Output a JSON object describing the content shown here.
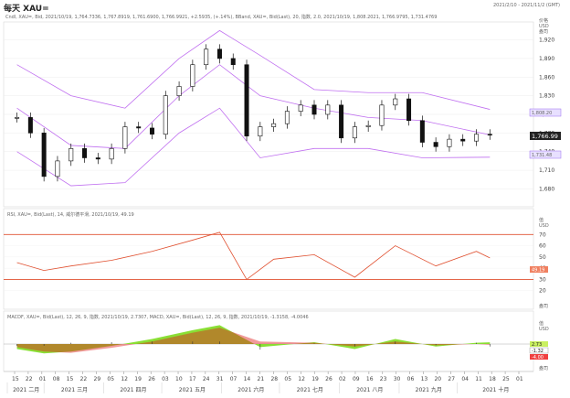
{
  "header": {
    "title": "每天 XAU=",
    "date_range": "2021/2/10 - 2021/11/2 (GMT)",
    "price_info": "Cndl, XAU=, Bid, 2021/10/19, 1,764.7336, 1,767.8919, 1,761.6900, 1,766.9921, +2.5935, (+.14%), BBand, XAU=, Bid(Last), 20, 指数, 2.0, 2021/10/19, 1,808.2021, 1,766.9795, 1,731.4769"
  },
  "price_panel": {
    "axis_title": "价格",
    "axis_unit": "USD",
    "axis_sub": "盎司",
    "last_price": "1,766.99",
    "upper_band_tag": "1,808.20",
    "lower_band_tag": "1,731.48",
    "ticks": [
      "1,920",
      "1,890",
      "1,860",
      "1,830",
      "1,800",
      "1,770",
      "1,740",
      "1,710",
      "1,680"
    ]
  },
  "rsi_panel": {
    "legend": "RSI, XAU=, Bid(Last), 14, 威尔德平滑, 2021/10/19, 49.19",
    "axis_title": "值",
    "axis_unit": "USD",
    "footer": "盎司",
    "ticks": [
      "70",
      "60",
      "50",
      "40",
      "30",
      "20"
    ],
    "last_tag": "49.19"
  },
  "macd_panel": {
    "legend": "MACDF, XAU=, Bid(Last), 12, 26, 9, 指数, 2021/10/19, 2.7307, MACD, XAU=, Bid(Last), 12, 26, 9, 指数, 2021/10/19, -1.3158, -4.0046",
    "axis_title": "值",
    "axis_unit": "USD",
    "footer": "盎司",
    "tags": [
      "2.73",
      "-1.32",
      "-4.00"
    ]
  },
  "time_axis": {
    "days": [
      "15",
      "22",
      "01",
      "08",
      "15",
      "22",
      "29",
      "05",
      "12",
      "19",
      "26",
      "03",
      "10",
      "17",
      "24",
      "31",
      "07",
      "14",
      "21",
      "28",
      "05",
      "12",
      "19",
      "26",
      "02",
      "09",
      "16",
      "23",
      "30",
      "06",
      "13",
      "20",
      "27",
      "04",
      "11",
      "18",
      "25",
      "01"
    ],
    "months": [
      "2021 二月",
      "2021 三月",
      "2021 四月",
      "2021 五月",
      "2021 六月",
      "2021 七月",
      "2021 八月",
      "2021 九月",
      "2021 十月"
    ]
  },
  "chart_data": [
    {
      "type": "candlestick",
      "series_name": "XAU= Bid",
      "x": [
        "2021-02-15",
        "2021-02-22",
        "2021-03-01",
        "2021-03-08",
        "2021-03-15",
        "2021-03-22",
        "2021-03-29",
        "2021-04-05",
        "2021-04-12",
        "2021-04-19",
        "2021-04-26",
        "2021-05-03",
        "2021-05-10",
        "2021-05-17",
        "2021-05-24",
        "2021-05-31",
        "2021-06-07",
        "2021-06-14",
        "2021-06-21",
        "2021-06-28",
        "2021-07-05",
        "2021-07-12",
        "2021-07-19",
        "2021-07-26",
        "2021-08-02",
        "2021-08-09",
        "2021-08-16",
        "2021-08-23",
        "2021-08-30",
        "2021-09-06",
        "2021-09-13",
        "2021-09-20",
        "2021-09-27",
        "2021-10-04",
        "2021-10-11",
        "2021-10-18"
      ],
      "close": [
        1795,
        1770,
        1700,
        1725,
        1745,
        1730,
        1728,
        1745,
        1780,
        1778,
        1768,
        1830,
        1845,
        1880,
        1905,
        1890,
        1880,
        1765,
        1780,
        1785,
        1805,
        1815,
        1800,
        1815,
        1762,
        1780,
        1782,
        1815,
        1825,
        1790,
        1755,
        1748,
        1760,
        1757,
        1768,
        1767
      ],
      "ylim": [
        1660,
        1940
      ]
    },
    {
      "type": "line",
      "series_name": "BBand 20",
      "x": [
        "2021-02-15",
        "2021-03-15",
        "2021-04-12",
        "2021-05-10",
        "2021-05-31",
        "2021-06-21",
        "2021-07-19",
        "2021-08-16",
        "2021-09-13",
        "2021-10-18"
      ],
      "upper": [
        1880,
        1830,
        1810,
        1890,
        1935,
        1895,
        1840,
        1835,
        1835,
        1808
      ],
      "middle": [
        1810,
        1750,
        1745,
        1830,
        1880,
        1830,
        1810,
        1795,
        1790,
        1767
      ],
      "lower": [
        1740,
        1685,
        1690,
        1770,
        1810,
        1730,
        1745,
        1745,
        1730,
        1731
      ]
    },
    {
      "type": "line",
      "series_name": "RSI 14",
      "x": [
        "2021-02-15",
        "2021-03-01",
        "2021-03-15",
        "2021-04-05",
        "2021-04-26",
        "2021-05-17",
        "2021-05-31",
        "2021-06-14",
        "2021-06-28",
        "2021-07-19",
        "2021-08-09",
        "2021-08-30",
        "2021-09-20",
        "2021-10-11",
        "2021-10-18"
      ],
      "values": [
        45,
        38,
        42,
        47,
        55,
        65,
        72,
        30,
        48,
        52,
        32,
        60,
        42,
        55,
        49.19
      ],
      "ylim": [
        10,
        80
      ],
      "levels": [
        70,
        30
      ]
    },
    {
      "type": "area",
      "series_name": "MACD",
      "x": [
        "2021-02-15",
        "2021-03-01",
        "2021-03-15",
        "2021-04-05",
        "2021-04-26",
        "2021-05-17",
        "2021-05-31",
        "2021-06-21",
        "2021-07-19",
        "2021-08-09",
        "2021-08-30",
        "2021-09-20",
        "2021-10-11",
        "2021-10-18"
      ],
      "macd": [
        -8,
        -15,
        -12,
        -3,
        8,
        22,
        30,
        -5,
        3,
        -8,
        8,
        -4,
        2,
        2.73
      ],
      "signal": [
        -5,
        -12,
        -14,
        -6,
        4,
        18,
        26,
        4,
        2,
        -4,
        4,
        -2,
        0,
        -1.32
      ],
      "hist": [
        -3,
        -3,
        2,
        3,
        4,
        4,
        4,
        -9,
        1,
        -4,
        4,
        -2,
        2,
        -4.0
      ]
    }
  ]
}
